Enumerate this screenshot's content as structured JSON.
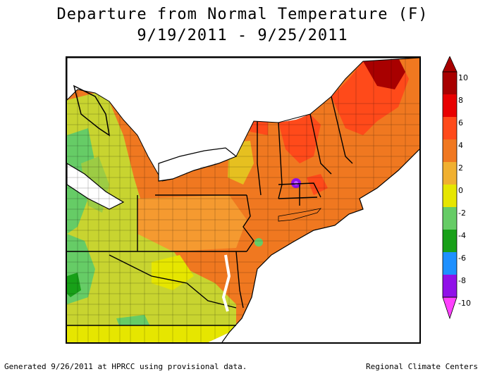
{
  "title": {
    "line1": "Departure from Normal Temperature (F)",
    "line2": "9/19/2011 - 9/25/2011"
  },
  "legend": {
    "labels": [
      "10",
      "8",
      "6",
      "4",
      "2",
      "0",
      "-2",
      "-4",
      "-6",
      "-8",
      "-10"
    ],
    "colors": [
      "#a80000",
      "#e80000",
      "#ff4a1a",
      "#f07820",
      "#f0b030",
      "#e6e600",
      "#66cc66",
      "#18a018",
      "#1e90ff",
      "#9010e8",
      "#ff40ff"
    ]
  },
  "footer": {
    "left": "Generated 9/26/2011 at HPRCC using provisional data.",
    "right": "Regional Climate Centers"
  }
}
